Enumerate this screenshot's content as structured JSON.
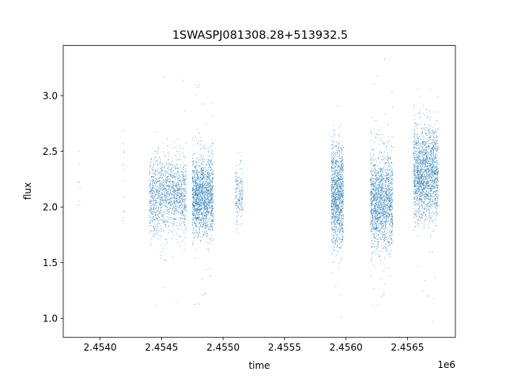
{
  "chart_data": {
    "type": "scatter",
    "title": "1SWASPJ081308.28+513932.5",
    "xlabel": "time",
    "ylabel": "flux",
    "x_offset_label": "1e6",
    "xlim": [
      2.4537,
      2.45689
    ],
    "ylim": [
      0.83,
      3.45
    ],
    "x_ticks": [
      2.454,
      2.4545,
      2.455,
      2.4555,
      2.456,
      2.4565
    ],
    "x_tick_labels": [
      "2.4540",
      "2.4545",
      "2.4550",
      "2.4555",
      "2.4560",
      "2.4565"
    ],
    "y_ticks": [
      1.0,
      1.5,
      2.0,
      2.5,
      3.0
    ],
    "y_tick_labels": [
      "1.0",
      "1.5",
      "2.0",
      "2.5",
      "3.0"
    ],
    "grid": false,
    "marker_color": "#1f77b4",
    "series": [
      {
        "clusters": [
          {
            "x": [
              2.45382,
              2.45384
            ],
            "n": 8,
            "center": 2.15,
            "spread": 0.25,
            "min": 1.68,
            "max": 2.7
          },
          {
            "x": [
              2.45418,
              2.4542
            ],
            "n": 12,
            "center": 2.3,
            "spread": 0.3,
            "min": 1.86,
            "max": 2.87
          },
          {
            "x": [
              2.4544,
              2.4547
            ],
            "n": 1400,
            "center": 2.1,
            "spread": 0.17,
            "min": 0.97,
            "max": 3.23
          },
          {
            "x": [
              2.45475,
              2.45492
            ],
            "n": 1600,
            "center": 2.1,
            "spread": 0.18,
            "min": 0.96,
            "max": 3.24
          },
          {
            "x": [
              2.4551,
              2.45516
            ],
            "n": 180,
            "center": 2.1,
            "spread": 0.14,
            "min": 1.66,
            "max": 2.5
          },
          {
            "x": [
              2.45588,
              2.45598
            ],
            "n": 1200,
            "center": 2.1,
            "spread": 0.23,
            "min": 0.97,
            "max": 3.33
          },
          {
            "x": [
              2.4562,
              2.45638
            ],
            "n": 1600,
            "center": 2.05,
            "spread": 0.22,
            "min": 0.94,
            "max": 3.35
          },
          {
            "x": [
              2.45655,
              2.45675
            ],
            "n": 1800,
            "center": 2.3,
            "spread": 0.21,
            "min": 0.93,
            "max": 3.3
          }
        ]
      }
    ]
  }
}
